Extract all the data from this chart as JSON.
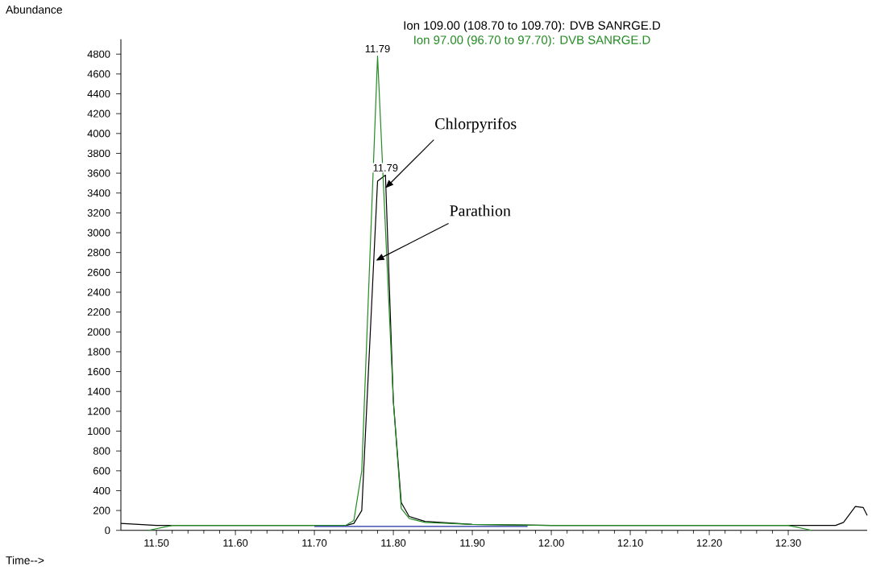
{
  "chart_data": {
    "type": "line",
    "title": "Ion 109.00 (108.70 to 109.70): DVB SANRGE.D",
    "subtitle": "Ion  97.00 (96.70 to 97.70): DVB SANRGE.D",
    "xlabel": "Time-->",
    "ylabel": "Abundance",
    "series": [
      {
        "color": "#000000",
        "x": [
          11.455,
          11.5,
          11.7,
          11.74,
          11.75,
          11.76,
          11.78,
          11.79,
          11.8,
          11.81,
          11.82,
          11.84,
          11.9,
          12.0,
          12.36,
          12.37,
          12.385,
          12.395,
          12.4
        ],
        "values": [
          70,
          50,
          50,
          50,
          70,
          200,
          3520,
          3580,
          1300,
          280,
          140,
          90,
          60,
          50,
          50,
          80,
          240,
          230,
          150
        ]
      },
      {
        "color": "#228b22",
        "x": [
          11.49,
          11.52,
          11.7,
          11.74,
          11.75,
          11.76,
          11.78,
          11.8,
          11.81,
          11.82,
          11.84,
          11.9,
          12.0,
          12.3,
          12.33
        ],
        "values": [
          0,
          50,
          50,
          50,
          100,
          600,
          4780,
          1300,
          220,
          120,
          80,
          60,
          50,
          50,
          0
        ]
      },
      {
        "color": "#1f2fa0",
        "x": [
          11.7,
          11.97
        ],
        "values": [
          40,
          40
        ]
      }
    ],
    "xlim": [
      11.455,
      12.4
    ],
    "ylim": [
      0,
      4950
    ],
    "xticks": [
      {
        "value": 11.5,
        "label": "11.50"
      },
      {
        "value": 11.6,
        "label": "11.60"
      },
      {
        "value": 11.7,
        "label": "11.70"
      },
      {
        "value": 11.8,
        "label": "11.80"
      },
      {
        "value": 11.9,
        "label": "11.90"
      },
      {
        "value": 12.0,
        "label": "12.00"
      },
      {
        "value": 12.1,
        "label": "12.10"
      },
      {
        "value": 12.2,
        "label": "12.20"
      },
      {
        "value": 12.3,
        "label": "12.30"
      }
    ],
    "yticks": [
      0,
      200,
      400,
      600,
      800,
      1000,
      1200,
      1400,
      1600,
      1800,
      2000,
      2200,
      2400,
      2600,
      2800,
      3000,
      3200,
      3400,
      3600,
      3800,
      4000,
      4200,
      4400,
      4600,
      4800
    ],
    "grid": false,
    "marker": "none",
    "line_style": "solid",
    "annotations": [
      {
        "text": "11.79",
        "x": 11.78,
        "y": 4780
      },
      {
        "text": "11.79",
        "x": 11.79,
        "y": 3580
      },
      {
        "text": "Chlorpyrifos",
        "x": 11.79,
        "y": 3450
      },
      {
        "text": "Parathion",
        "x": 11.778,
        "y": 2720
      }
    ]
  }
}
